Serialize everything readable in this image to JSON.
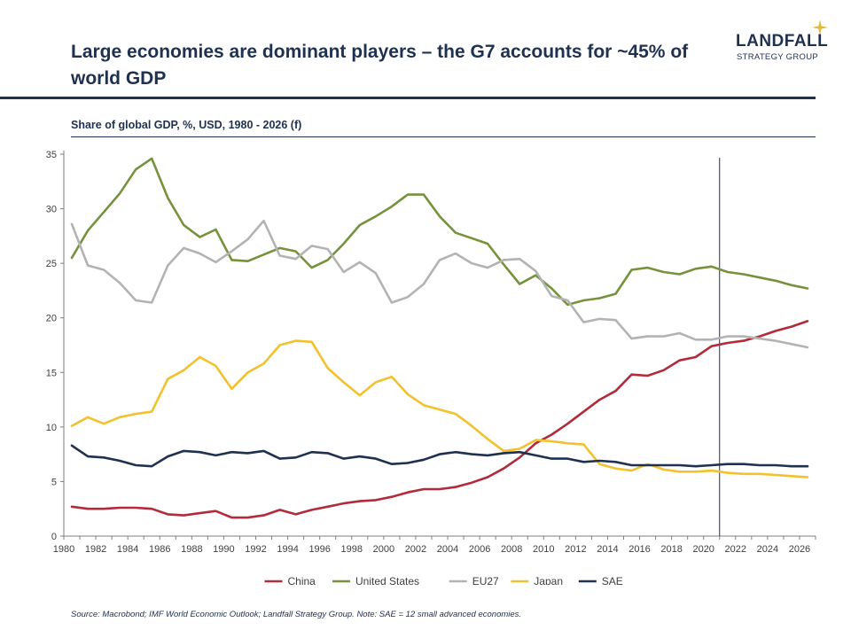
{
  "header": {
    "title": "Large economies are dominant players – the G7 accounts for ~45% of world GDP",
    "logo_name": "LANDFALL",
    "logo_sub": "STRATEGY GROUP",
    "subtitle": "Share of global GDP, %, USD, 1980 - 2026 (f)"
  },
  "footer": {
    "source": "Source: Macrobond; IMF World Economic Outlook; Landfall Strategy Group. Note: SAE = 12 small advanced economies."
  },
  "colors": {
    "navy": "#1f3150",
    "gold": "#e2b93b"
  },
  "chart_data": {
    "type": "line",
    "x": [
      1980,
      1981,
      1982,
      1983,
      1984,
      1985,
      1986,
      1987,
      1988,
      1989,
      1990,
      1991,
      1992,
      1993,
      1994,
      1995,
      1996,
      1997,
      1998,
      1999,
      2000,
      2001,
      2002,
      2003,
      2004,
      2005,
      2006,
      2007,
      2008,
      2009,
      2010,
      2011,
      2012,
      2013,
      2014,
      2015,
      2016,
      2017,
      2018,
      2019,
      2020,
      2021,
      2022,
      2023,
      2024,
      2025,
      2026
    ],
    "xlim": [
      1980,
      2027
    ],
    "ylim": [
      0,
      35
    ],
    "xticks": [
      1980,
      1982,
      1984,
      1986,
      1988,
      1990,
      1992,
      1994,
      1996,
      1998,
      2000,
      2002,
      2004,
      2006,
      2008,
      2010,
      2012,
      2014,
      2016,
      2018,
      2020,
      2022,
      2024,
      2026
    ],
    "yticks": [
      0,
      5,
      10,
      15,
      20,
      25,
      30,
      35
    ],
    "forecast_marker_x": 2021,
    "legend_position": "bottom",
    "grid": false,
    "series": [
      {
        "name": "China",
        "color": "#b22b3a",
        "values": [
          2.7,
          2.5,
          2.5,
          2.6,
          2.6,
          2.5,
          2.0,
          1.9,
          2.1,
          2.3,
          1.7,
          1.7,
          1.9,
          2.4,
          2.0,
          2.4,
          2.7,
          3.0,
          3.2,
          3.3,
          3.6,
          4.0,
          4.3,
          4.3,
          4.5,
          4.9,
          5.4,
          6.2,
          7.2,
          8.5,
          9.3,
          10.3,
          11.4,
          12.5,
          13.3,
          14.8,
          14.7,
          15.2,
          16.1,
          16.4,
          17.4,
          17.7,
          17.9,
          18.3,
          18.8,
          19.2,
          19.7
        ]
      },
      {
        "name": "United States",
        "color": "#76923c",
        "values": [
          25.5,
          28.0,
          29.7,
          31.4,
          33.6,
          34.6,
          31.0,
          28.5,
          27.4,
          28.1,
          25.3,
          25.2,
          25.8,
          26.4,
          26.1,
          24.6,
          25.3,
          26.8,
          28.5,
          29.3,
          30.2,
          31.3,
          31.3,
          29.3,
          27.8,
          27.3,
          26.8,
          24.9,
          23.1,
          23.9,
          22.7,
          21.2,
          21.6,
          21.8,
          22.2,
          24.4,
          24.6,
          24.2,
          24.0,
          24.5,
          24.7,
          24.2,
          24.0,
          23.7,
          23.4,
          23.0,
          22.7
        ]
      },
      {
        "name": "EU27",
        "color": "#b3b3b3",
        "values": [
          28.6,
          24.8,
          24.4,
          23.2,
          21.6,
          21.4,
          24.8,
          26.4,
          25.9,
          25.1,
          26.1,
          27.2,
          28.9,
          25.7,
          25.4,
          26.6,
          26.3,
          24.2,
          25.1,
          24.1,
          21.4,
          21.9,
          23.1,
          25.3,
          25.9,
          25.0,
          24.6,
          25.3,
          25.4,
          24.3,
          22.0,
          21.6,
          19.6,
          19.9,
          19.8,
          18.1,
          18.3,
          18.3,
          18.6,
          18.0,
          18.0,
          18.3,
          18.3,
          18.1,
          17.9,
          17.6,
          17.3
        ]
      },
      {
        "name": "Japan",
        "color": "#f2c12e",
        "values": [
          10.1,
          10.9,
          10.3,
          10.9,
          11.2,
          11.4,
          14.4,
          15.2,
          16.4,
          15.6,
          13.5,
          15.0,
          15.8,
          17.5,
          17.9,
          17.8,
          15.4,
          14.1,
          12.9,
          14.1,
          14.6,
          13.0,
          12.0,
          11.6,
          11.2,
          10.1,
          8.9,
          7.8,
          8.0,
          8.8,
          8.7,
          8.5,
          8.4,
          6.6,
          6.2,
          6.0,
          6.6,
          6.1,
          5.9,
          5.9,
          6.0,
          5.8,
          5.7,
          5.7,
          5.6,
          5.5,
          5.4
        ]
      },
      {
        "name": "SAE",
        "color": "#1f3150",
        "values": [
          8.3,
          7.3,
          7.2,
          6.9,
          6.5,
          6.4,
          7.3,
          7.8,
          7.7,
          7.4,
          7.7,
          7.6,
          7.8,
          7.1,
          7.2,
          7.7,
          7.6,
          7.1,
          7.3,
          7.1,
          6.6,
          6.7,
          7.0,
          7.5,
          7.7,
          7.5,
          7.4,
          7.6,
          7.7,
          7.4,
          7.1,
          7.1,
          6.8,
          6.9,
          6.8,
          6.5,
          6.5,
          6.5,
          6.5,
          6.4,
          6.5,
          6.6,
          6.6,
          6.5,
          6.5,
          6.4,
          6.4
        ]
      }
    ]
  }
}
